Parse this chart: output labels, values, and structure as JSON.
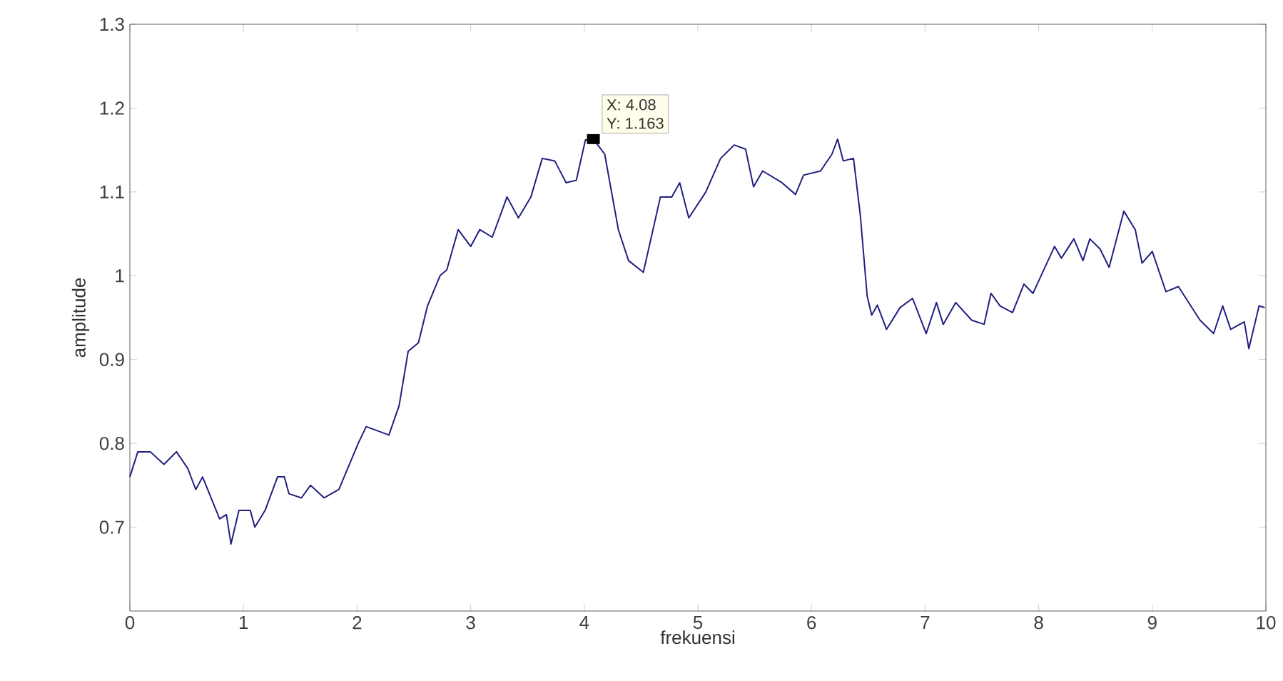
{
  "chart_data": {
    "type": "line",
    "xlabel": "frekuensi",
    "ylabel": "amplitude",
    "xlim": [
      0,
      10
    ],
    "ylim": [
      0.6,
      1.3
    ],
    "xticks": [
      0,
      1,
      2,
      3,
      4,
      5,
      6,
      7,
      8,
      9,
      10
    ],
    "yticks": [
      0.7,
      0.8,
      0.9,
      1,
      1.1,
      1.2,
      1.3
    ],
    "annotations": [
      {
        "text": "X: 4.08",
        "x": 4.08,
        "y": 1.163
      },
      "Y: 1.163"
    ],
    "series": [
      {
        "color": "#202080",
        "x": [
          0,
          0.07,
          0.18,
          0.3,
          0.41,
          0.51,
          0.58,
          0.64,
          0.73,
          0.79,
          0.85,
          0.89,
          0.96,
          1.06,
          1.1,
          1.19,
          1.3,
          1.36,
          1.4,
          1.51,
          1.59,
          1.71,
          1.84,
          2.01,
          2.08,
          2.18,
          2.28,
          2.37,
          2.45,
          2.54,
          2.62,
          2.73,
          2.79,
          2.89,
          3.0,
          3.08,
          3.19,
          3.32,
          3.42,
          3.53,
          3.63,
          3.74,
          3.84,
          3.93,
          4.01,
          4.08,
          4.18,
          4.3,
          4.39,
          4.52,
          4.67,
          4.77,
          4.84,
          4.92,
          5.07,
          5.2,
          5.32,
          5.42,
          5.49,
          5.57,
          5.74,
          5.86,
          5.93,
          6.08,
          6.18,
          6.23,
          6.28,
          6.37,
          6.43,
          6.49,
          6.53,
          6.58,
          6.66,
          6.78,
          6.89,
          7.01,
          7.1,
          7.16,
          7.27,
          7.41,
          7.52,
          7.58,
          7.66,
          7.77,
          7.87,
          7.95,
          8.14,
          8.2,
          8.31,
          8.39,
          8.45,
          8.54,
          8.62,
          8.75,
          8.85,
          8.91,
          9.0,
          9.12,
          9.23,
          9.42,
          9.54,
          9.62,
          9.69,
          9.81,
          9.85,
          9.94,
          9.99
        ],
        "values": [
          0.76,
          0.79,
          0.79,
          0.775,
          0.79,
          0.77,
          0.745,
          0.76,
          0.73,
          0.71,
          0.715,
          0.68,
          0.72,
          0.72,
          0.7,
          0.72,
          0.76,
          0.76,
          0.74,
          0.735,
          0.75,
          0.735,
          0.745,
          0.8,
          0.82,
          0.815,
          0.81,
          0.845,
          0.91,
          0.92,
          0.964,
          1.0,
          1.007,
          1.055,
          1.035,
          1.055,
          1.046,
          1.094,
          1.069,
          1.094,
          1.14,
          1.137,
          1.111,
          1.114,
          1.162,
          1.163,
          1.145,
          1.055,
          1.018,
          1.004,
          1.094,
          1.094,
          1.111,
          1.069,
          1.1,
          1.14,
          1.156,
          1.151,
          1.106,
          1.125,
          1.111,
          1.097,
          1.12,
          1.125,
          1.145,
          1.163,
          1.137,
          1.14,
          1.072,
          0.976,
          0.953,
          0.965,
          0.936,
          0.962,
          0.973,
          0.931,
          0.968,
          0.942,
          0.968,
          0.947,
          0.942,
          0.979,
          0.964,
          0.956,
          0.99,
          0.979,
          1.035,
          1.021,
          1.044,
          1.018,
          1.044,
          1.032,
          1.01,
          1.077,
          1.055,
          1.015,
          1.029,
          0.981,
          0.987,
          0.947,
          0.931,
          0.964,
          0.936,
          0.945,
          0.913,
          0.964,
          0.962
        ]
      }
    ]
  }
}
